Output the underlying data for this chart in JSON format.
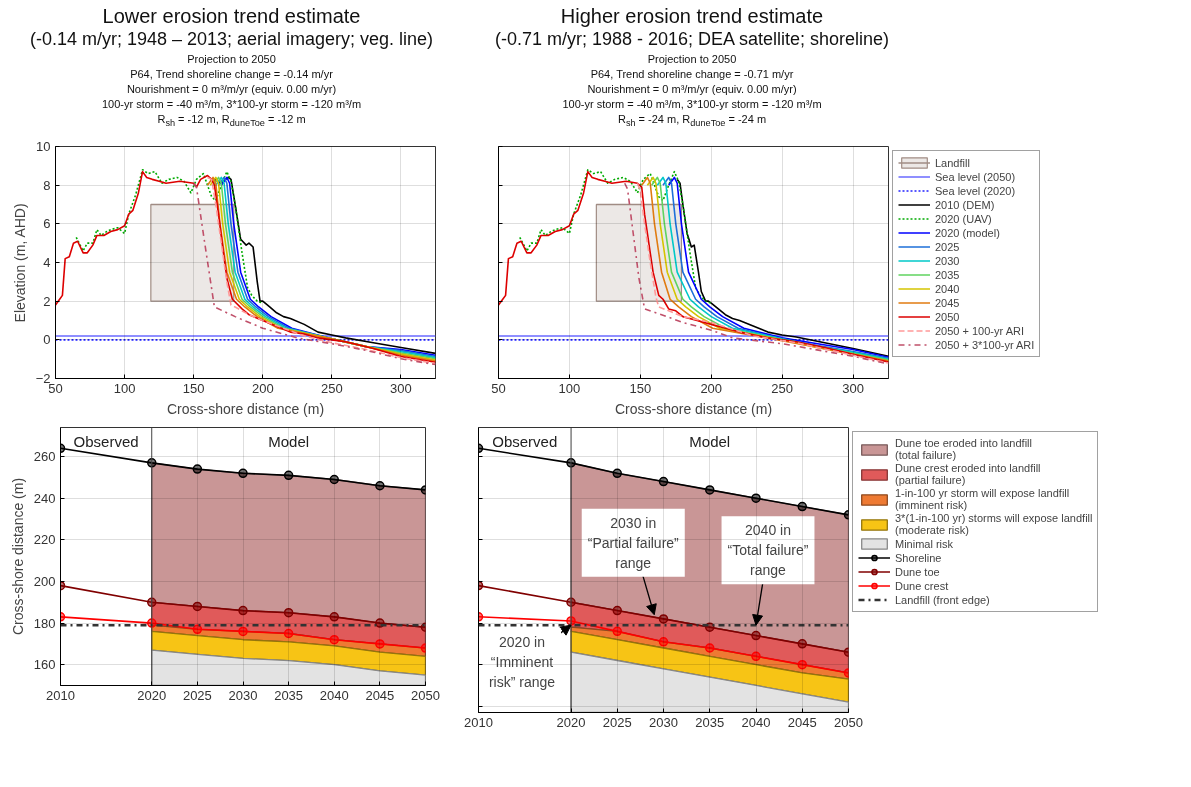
{
  "chart_data": [
    {
      "type": "line",
      "title": "Lower erosion trend estimate",
      "subtitle": "(-0.14 m/yr; 1948 – 2013; aerial imagery; veg. line)",
      "annotations": [
        "Projection to 2050",
        "P64, Trend shoreline change = -0.14 m/yr",
        "Nourishment = 0 m³/m/yr (equiv. 0.00 m/yr)",
        "100-yr storm = -40 m³/m, 3*100-yr storm = -120 m³/m",
        "R$_{sh}$ = -12 m, R$_{duneToe}$ = -12 m"
      ],
      "xlabel": "Cross-shore distance (m)",
      "ylabel": "Elevation (m, AHD)",
      "xlim": [
        50,
        325
      ],
      "ylim": [
        -2,
        10
      ],
      "xticks": [
        50,
        100,
        150,
        200,
        250,
        300
      ],
      "yticks": [
        -2,
        0,
        2,
        4,
        6,
        8,
        10
      ],
      "grid": true,
      "series": [
        {
          "type": "line",
          "color": "#a08c84",
          "x": [
            119,
            179
          ],
          "values": [
            7,
            7
          ],
          "lower": [
            2,
            2
          ],
          "upper": [
            7,
            7
          ]
        },
        {
          "color": "#6a6aff",
          "x": [
            50,
            325
          ],
          "values": [
            0.2,
            0.2
          ]
        },
        {
          "color": "#2222ff",
          "line_style": "dotted",
          "x": [
            50,
            325
          ],
          "values": [
            0,
            0
          ]
        },
        {
          "color": "#000000",
          "x": [
            165,
            170,
            173,
            175,
            177,
            180,
            184,
            188,
            190,
            193,
            196,
            198,
            200,
            205,
            210,
            215,
            220,
            230,
            240,
            250,
            260,
            280,
            300,
            325
          ],
          "values": [
            8.3,
            8.1,
            8.3,
            8.4,
            8.3,
            7.0,
            5.2,
            4.9,
            5.0,
            4.8,
            3.0,
            2.0,
            2.0,
            1.7,
            1.4,
            1.2,
            1.1,
            0.8,
            0.4,
            0.25,
            0.1,
            -0.15,
            -0.4,
            -0.7
          ]
        },
        {
          "color": "#00aa00",
          "line_style": "dotted",
          "x": [
            65,
            70,
            73,
            77,
            80,
            83,
            87,
            90,
            95,
            100,
            103,
            108,
            113,
            117,
            122,
            127,
            132,
            138,
            143,
            148,
            152,
            157,
            160,
            163,
            166,
            170,
            174,
            177,
            180,
            185,
            189,
            192,
            196,
            200
          ],
          "values": [
            5.3,
            4.6,
            5.0,
            5.0,
            5.7,
            5.4,
            5.6,
            5.7,
            5.8,
            5.5,
            6.5,
            7.5,
            8.8,
            8.6,
            8.7,
            8.1,
            8.3,
            8.4,
            8.2,
            7.6,
            8.3,
            8.6,
            8.0,
            7.4,
            7.2,
            8.0,
            8.7,
            8.2,
            7.0,
            4.5,
            2.7,
            2.3,
            2.0,
            1.9
          ]
        },
        {
          "color": "#0000ff",
          "x": [
            170,
            174,
            176,
            179,
            184,
            191,
            197,
            206,
            221,
            250,
            275,
            300,
            325
          ],
          "values": [
            8.0,
            8.4,
            8.1,
            6.0,
            3.5,
            2.1,
            1.7,
            1.2,
            0.6,
            0.05,
            -0.35,
            -0.5,
            -0.8
          ]
        },
        {
          "color": "#1e6fd9",
          "x": [
            168,
            172,
            174,
            177,
            182,
            189,
            195,
            204,
            219,
            250,
            275,
            300,
            325
          ],
          "values": [
            8.0,
            8.4,
            8.1,
            6.0,
            3.5,
            2.1,
            1.7,
            1.2,
            0.6,
            0.05,
            -0.35,
            -0.56,
            -0.86
          ]
        },
        {
          "color": "#00c8c8",
          "x": [
            166,
            170,
            172,
            175,
            180,
            187,
            193,
            202,
            217,
            250,
            275,
            300,
            325
          ],
          "values": [
            8.0,
            8.4,
            8.1,
            6.0,
            3.5,
            2.1,
            1.7,
            1.2,
            0.6,
            0.05,
            -0.35,
            -0.62,
            -0.92
          ]
        },
        {
          "color": "#5fd35f",
          "x": [
            164,
            168,
            170,
            173,
            178,
            185,
            191,
            200,
            215,
            250,
            275,
            300,
            325
          ],
          "values": [
            8.0,
            8.4,
            8.1,
            6.0,
            3.5,
            2.1,
            1.7,
            1.2,
            0.6,
            0.05,
            -0.35,
            -0.68,
            -0.98
          ]
        },
        {
          "color": "#d4c400",
          "x": [
            162,
            166,
            168,
            171,
            176,
            183,
            189,
            198,
            213,
            250,
            275,
            300,
            325
          ],
          "values": [
            8.0,
            8.4,
            8.1,
            6.0,
            3.5,
            2.1,
            1.7,
            1.2,
            0.6,
            0.05,
            -0.35,
            -0.74,
            -1.04
          ]
        },
        {
          "color": "#e07b10",
          "x": [
            160,
            164,
            166,
            169,
            174,
            181,
            187,
            196,
            211,
            250,
            275,
            300,
            325
          ],
          "values": [
            8.0,
            8.4,
            8.1,
            6.0,
            3.5,
            2.1,
            1.7,
            1.2,
            0.6,
            0.05,
            -0.35,
            -0.8,
            -1.1
          ]
        },
        {
          "color": "#dd0000",
          "x": [
            50,
            53,
            55,
            57,
            60,
            63,
            66,
            70,
            73,
            77,
            80,
            85,
            90,
            95,
            100,
            103,
            106,
            110,
            113,
            116,
            120,
            125,
            130,
            140,
            150,
            152,
            155,
            160,
            163,
            165,
            168,
            171,
            174,
            178,
            185,
            190,
            200,
            210,
            220,
            230,
            240,
            250,
            260,
            280,
            300,
            325
          ],
          "values": [
            1.8,
            2.1,
            2.3,
            4.2,
            4.3,
            5.0,
            5.1,
            4.5,
            4.5,
            4.9,
            5.4,
            5.4,
            5.6,
            5.7,
            5.9,
            6.5,
            6.7,
            7.6,
            8.7,
            8.4,
            8.3,
            8.2,
            8.1,
            8.2,
            8.1,
            7.9,
            8.3,
            8.5,
            8.3,
            8.0,
            6.5,
            4.8,
            3.2,
            2.1,
            1.6,
            1.3,
            1.0,
            0.7,
            0.4,
            0.3,
            0.1,
            0.0,
            -0.1,
            -0.45,
            -0.86,
            -1.16
          ]
        },
        {
          "color": "#ff9999",
          "line_style": "dashed",
          "x": [
            160,
            163,
            166,
            170,
            174,
            177,
            180,
            190,
            200,
            215,
            230,
            250,
            275,
            300,
            325
          ],
          "values": [
            8.4,
            8.3,
            7.0,
            5.0,
            3.0,
            1.8,
            1.7,
            1.3,
            1.0,
            0.6,
            0.2,
            -0.15,
            -0.5,
            -0.92,
            -1.22
          ]
        },
        {
          "color": "#c0506a",
          "line_style": "dashdot",
          "x": [
            150,
            152,
            158,
            165,
            180,
            200,
            225,
            250,
            275,
            300,
            325
          ],
          "values": [
            8.1,
            7.9,
            5.0,
            1.7,
            1.2,
            0.6,
            0.1,
            -0.2,
            -0.55,
            -0.98,
            -1.28
          ]
        }
      ]
    },
    {
      "type": "line",
      "title": "Higher erosion trend estimate",
      "subtitle": "(-0.71 m/yr; 1988 - 2016; DEA satellite; shoreline)",
      "annotations": [
        "Projection to 2050",
        "P64, Trend shoreline change = -0.71 m/yr",
        "Nourishment = 0 m³/m/yr (equiv. 0.00 m/yr)",
        "100-yr storm = -40 m³/m, 3*100-yr storm = -120 m³/m",
        "R$_{sh}$ = -24 m, R$_{duneToe}$ = -24 m"
      ],
      "xlabel": "Cross-shore distance (m)",
      "xlim": [
        50,
        325
      ],
      "ylim": [
        -2,
        10
      ],
      "xticks": [
        50,
        100,
        150,
        200,
        250,
        300
      ],
      "yticks": [
        -2,
        0,
        2,
        4,
        6,
        8,
        10
      ],
      "grid": true,
      "tick_labels": "x",
      "legend": "right",
      "series": [
        {
          "type": "line",
          "name": "Landfill",
          "color": "#a08c84",
          "x": [
            119,
            179
          ],
          "values": [
            7,
            7
          ],
          "lower": [
            2,
            2
          ],
          "upper": [
            7,
            7
          ]
        },
        {
          "name": "Sea level (2050)",
          "color": "#6a6aff",
          "x": [
            50,
            325
          ],
          "values": [
            0.2,
            0.2
          ]
        },
        {
          "name": "Sea level (2020)",
          "color": "#2222ff",
          "line_style": "dotted",
          "x": [
            50,
            325
          ],
          "values": [
            0,
            0
          ]
        },
        {
          "name": "2010 (DEM)",
          "color": "#000000",
          "x": [
            176,
            178,
            180,
            183,
            186,
            188,
            191,
            193,
            196,
            198,
            200,
            205,
            210,
            215,
            220,
            230,
            240,
            250,
            260,
            280,
            300,
            325
          ],
          "values": [
            8.3,
            8.1,
            7.0,
            5.5,
            4.8,
            4.9,
            3.5,
            2.5,
            2.0,
            2.0,
            1.9,
            1.6,
            1.3,
            1.1,
            1.0,
            0.7,
            0.4,
            0.25,
            0.15,
            -0.15,
            -0.45,
            -0.85
          ]
        },
        {
          "name": "2020 (UAV)",
          "color": "#00aa00",
          "line_style": "dotted",
          "x": [
            65,
            70,
            73,
            77,
            80,
            83,
            87,
            90,
            95,
            100,
            103,
            108,
            113,
            117,
            122,
            127,
            132,
            138,
            143,
            148,
            152,
            157,
            160,
            163,
            166,
            170,
            174,
            177,
            180,
            185,
            189,
            192,
            196,
            200
          ],
          "values": [
            5.3,
            4.6,
            5.0,
            5.0,
            5.7,
            5.4,
            5.6,
            5.7,
            5.8,
            5.5,
            6.5,
            7.5,
            8.8,
            8.6,
            8.7,
            8.1,
            8.3,
            8.4,
            8.2,
            7.6,
            8.3,
            8.6,
            8.0,
            7.4,
            7.2,
            8.0,
            8.7,
            8.2,
            7.0,
            4.5,
            2.7,
            2.3,
            2.0,
            1.9
          ]
        },
        {
          "name": "2020 (model)",
          "color": "#0000ff",
          "x": [
            170,
            174,
            176,
            179,
            184,
            193,
            199,
            208,
            223,
            250,
            275,
            300,
            325
          ],
          "values": [
            8.0,
            8.4,
            8.1,
            6.0,
            3.5,
            2.1,
            1.7,
            1.2,
            0.6,
            0.1,
            -0.2,
            -0.5,
            -0.9
          ]
        },
        {
          "name": "2025",
          "color": "#1e6fd9",
          "x": [
            166,
            170,
            172,
            175,
            180,
            189,
            195,
            204,
            219,
            250,
            275,
            300,
            325
          ],
          "values": [
            8.0,
            8.4,
            8.1,
            6.0,
            3.5,
            2.1,
            1.7,
            1.2,
            0.6,
            0.05,
            -0.3,
            -0.6,
            -0.95
          ]
        },
        {
          "name": "2030",
          "color": "#00c8c8",
          "x": [
            162,
            166,
            168,
            171,
            176,
            185,
            191,
            200,
            215,
            250,
            275,
            300,
            325
          ],
          "values": [
            8.0,
            8.4,
            8.1,
            6.0,
            3.5,
            2.1,
            1.7,
            1.2,
            0.6,
            0.05,
            -0.35,
            -0.65,
            -1.0
          ]
        },
        {
          "name": "2035",
          "color": "#5fd35f",
          "x": [
            158,
            162,
            164,
            167,
            172,
            180,
            186,
            195,
            210,
            250,
            275,
            300,
            325
          ],
          "values": [
            8.0,
            8.4,
            8.1,
            6.0,
            3.5,
            2.1,
            1.7,
            1.2,
            0.6,
            0.0,
            -0.35,
            -0.7,
            -1.05
          ]
        },
        {
          "name": "2040",
          "color": "#d4c400",
          "x": [
            155,
            159,
            161,
            164,
            169,
            176,
            182,
            191,
            206,
            250,
            275,
            300,
            325
          ],
          "values": [
            8.0,
            8.4,
            8.1,
            6.0,
            3.5,
            2.1,
            1.7,
            1.2,
            0.6,
            0.0,
            -0.4,
            -0.75,
            -1.1
          ]
        },
        {
          "name": "2045",
          "color": "#e07b10",
          "x": [
            151,
            155,
            157,
            160,
            165,
            171,
            177,
            186,
            201,
            250,
            275,
            300,
            325
          ],
          "values": [
            8.0,
            8.4,
            8.1,
            6.0,
            3.5,
            2.1,
            1.7,
            1.2,
            0.6,
            -0.05,
            -0.4,
            -0.75,
            -1.1
          ]
        },
        {
          "name": "2050",
          "color": "#dd0000",
          "x": [
            50,
            53,
            55,
            57,
            60,
            63,
            66,
            70,
            73,
            77,
            80,
            85,
            90,
            95,
            100,
            103,
            106,
            110,
            113,
            116,
            120,
            125,
            130,
            140,
            148,
            151,
            153,
            156,
            159,
            163,
            166,
            170,
            175,
            180,
            190,
            200,
            210,
            220,
            240,
            260,
            280,
            300,
            325
          ],
          "values": [
            1.8,
            2.1,
            2.3,
            4.2,
            4.3,
            5.0,
            5.1,
            4.5,
            4.5,
            4.9,
            5.4,
            5.4,
            5.6,
            5.7,
            5.9,
            6.5,
            6.7,
            7.6,
            8.7,
            8.4,
            8.3,
            8.2,
            8.1,
            8.2,
            8.1,
            7.9,
            6.5,
            5.0,
            3.5,
            2.3,
            2.1,
            1.6,
            1.5,
            1.2,
            1.0,
            0.8,
            0.6,
            0.4,
            0.1,
            -0.1,
            -0.4,
            -0.75,
            -1.15
          ]
        },
        {
          "name": "2050 + 100-yr ARI",
          "color": "#ff9999",
          "line_style": "dashed",
          "x": [
            148,
            150,
            153,
            157,
            161,
            163,
            170,
            180,
            200,
            230,
            260,
            300,
            325
          ],
          "values": [
            8.1,
            7.7,
            6.0,
            4.0,
            2.2,
            1.7,
            1.5,
            1.2,
            0.9,
            0.2,
            -0.15,
            -0.8,
            -1.2
          ]
        },
        {
          "name": "2050 + 3*100-yr ARI",
          "color": "#c0506a",
          "line_style": "dashdot",
          "x": [
            139,
            141,
            145,
            149,
            153,
            165,
            180,
            200,
            215,
            250,
            300,
            325
          ],
          "values": [
            8.1,
            7.8,
            5.5,
            3.2,
            1.6,
            1.3,
            0.9,
            0.5,
            0.1,
            -0.2,
            -0.85,
            -1.25
          ]
        }
      ]
    },
    {
      "type": "line",
      "ylabel": "Cross-shore distance (m)",
      "x": [
        2010,
        2020,
        2025,
        2030,
        2035,
        2040,
        2045,
        2050
      ],
      "xlim": [
        2010,
        2050
      ],
      "ylim": [
        150,
        274
      ],
      "xticks": [
        2010,
        2020,
        2025,
        2030,
        2035,
        2040,
        2045,
        2050
      ],
      "yticks": [
        160,
        180,
        200,
        220,
        240,
        260
      ],
      "grid": true,
      "annotations": [
        "Observed",
        "Model"
      ],
      "ref_lines": [
        {
          "axis": "x",
          "value": 2020,
          "color": "#555555"
        },
        {
          "axis": "y",
          "value": 179,
          "color": "#333333",
          "line_style": "dashdot"
        }
      ],
      "series": [
        {
          "type": "area",
          "color": "#c99696",
          "x": [
            2020,
            2025,
            2030,
            2035,
            2040,
            2045,
            2050
          ],
          "values": [
            257,
            254,
            252,
            251,
            249,
            246,
            244
          ]
        },
        {
          "type": "area",
          "color": "#e05a5a",
          "x": [
            2020,
            2025,
            2030,
            2035,
            2040,
            2045,
            2050
          ],
          "values": [
            190,
            188,
            186,
            185,
            183,
            180,
            178
          ]
        },
        {
          "type": "area",
          "color": "#ee7a33",
          "x": [
            2020,
            2025,
            2030,
            2035,
            2040,
            2045,
            2050
          ],
          "values": [
            179,
            177,
            176,
            175,
            172,
            170,
            168
          ]
        },
        {
          "type": "area",
          "color": "#f7c415",
          "x": [
            2020,
            2025,
            2030,
            2035,
            2040,
            2045,
            2050
          ],
          "values": [
            176,
            174,
            172,
            171,
            169,
            166,
            164
          ]
        },
        {
          "type": "area",
          "color": "#e3e3e3",
          "x": [
            2020,
            2025,
            2030,
            2035,
            2040,
            2045,
            2050
          ],
          "values": [
            167,
            165,
            163,
            162,
            160,
            157,
            155
          ]
        },
        {
          "color": "#000000",
          "marker": "circle",
          "values": [
            264,
            257,
            254,
            252,
            251,
            249,
            246,
            244
          ]
        },
        {
          "color": "#800000",
          "marker": "circle",
          "values": [
            198,
            190,
            188,
            186,
            185,
            183,
            180,
            178
          ]
        },
        {
          "color": "#ff0000",
          "marker": "circle",
          "values": [
            183,
            180,
            177,
            176,
            175,
            172,
            170,
            168
          ]
        }
      ]
    },
    {
      "type": "line",
      "x": [
        2010,
        2020,
        2025,
        2030,
        2035,
        2040,
        2045,
        2050
      ],
      "xlim": [
        2010,
        2050
      ],
      "ylim": [
        137,
        274
      ],
      "xticks": [
        2010,
        2020,
        2025,
        2030,
        2035,
        2040,
        2045,
        2050
      ],
      "yticks": [
        140,
        160,
        180,
        200,
        220,
        240,
        260
      ],
      "grid": true,
      "tick_labels": "x",
      "legend": "right",
      "annotations": [
        "Observed",
        "Model",
        {
          "text": "2030 in\n“Partial failure”\nrange",
          "x": 2029,
          "y": 184
        },
        {
          "text": "2040 in\n“Total failure”\nrange",
          "x": 2040,
          "y": 179
        },
        {
          "text": "2020 in\n“Imminent\nrisk” range",
          "x": 2020,
          "y": 179
        }
      ],
      "ref_lines": [
        {
          "axis": "x",
          "value": 2020,
          "color": "#555555"
        },
        {
          "axis": "y",
          "value": 179,
          "label": "Landfill (front edge)",
          "color": "#333333",
          "line_style": "dashdot"
        }
      ],
      "series": [
        {
          "type": "area",
          "name": "Dune toe eroded into landfill (total failure)",
          "color": "#c99696",
          "x": [
            2020,
            2025,
            2030,
            2035,
            2040,
            2045,
            2050
          ],
          "values": [
            257,
            252,
            248,
            244,
            240,
            236,
            232
          ]
        },
        {
          "type": "area",
          "name": "Dune crest eroded into landfill (partial failure)",
          "color": "#e05a5a",
          "x": [
            2020,
            2025,
            2030,
            2035,
            2040,
            2045,
            2050
          ],
          "values": [
            190,
            186,
            182,
            178,
            174,
            170,
            166
          ]
        },
        {
          "type": "area",
          "name": "1-in-100 yr storm will expose landfill (imminent risk)",
          "color": "#ee7a33",
          "x": [
            2020,
            2025,
            2030,
            2035,
            2040,
            2045,
            2050
          ],
          "values": [
            178,
            176,
            171,
            168,
            164,
            160,
            156
          ]
        },
        {
          "type": "area",
          "name": "3*(1-in-100 yr) storms will expose landfill (moderate risk)",
          "color": "#f7c415",
          "x": [
            2020,
            2025,
            2030,
            2035,
            2040,
            2045,
            2050
          ],
          "values": [
            176,
            172,
            168,
            164,
            160,
            156,
            153
          ]
        },
        {
          "type": "area",
          "name": "Minimal risk",
          "color": "#e3e3e3",
          "x": [
            2020,
            2025,
            2030,
            2035,
            2040,
            2045,
            2050
          ],
          "values": [
            166,
            162,
            158,
            154,
            150,
            146,
            142
          ]
        },
        {
          "name": "Shoreline",
          "color": "#000000",
          "marker": "circle",
          "values": [
            264,
            257,
            252,
            248,
            244,
            240,
            236,
            232
          ]
        },
        {
          "name": "Dune toe",
          "color": "#800000",
          "marker": "circle",
          "values": [
            198,
            190,
            186,
            182,
            178,
            174,
            170,
            166
          ]
        },
        {
          "name": "Dune crest",
          "color": "#ff0000",
          "marker": "circle",
          "values": [
            183,
            181,
            176,
            171,
            168,
            164,
            160,
            156
          ]
        }
      ]
    }
  ]
}
